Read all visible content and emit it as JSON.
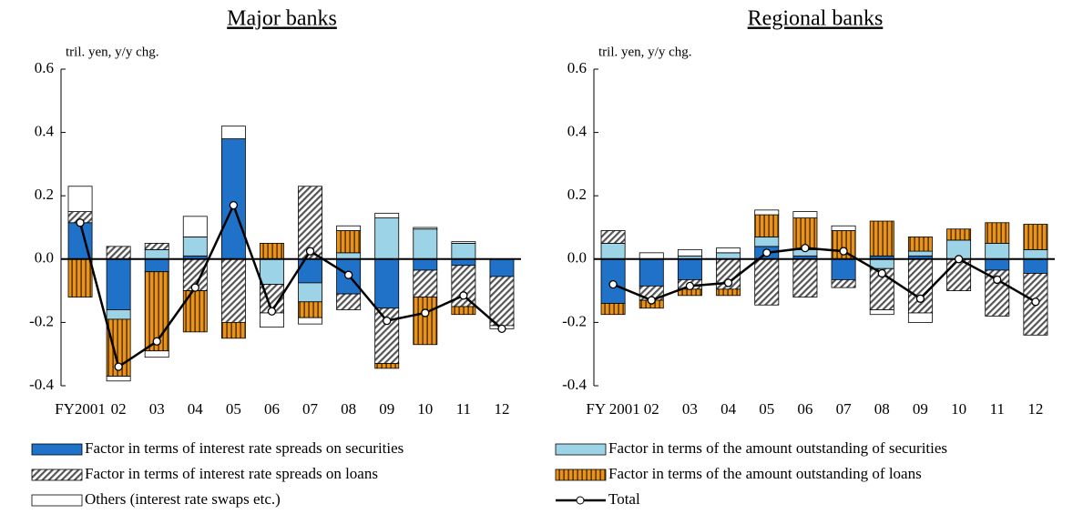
{
  "chart_data": [
    {
      "type": "bar",
      "title": "Major banks",
      "y_label": "tril. yen, y/y chg.",
      "categories": [
        "FY2001",
        "02",
        "03",
        "04",
        "05",
        "06",
        "07",
        "08",
        "09",
        "10",
        "11",
        "12"
      ],
      "ylim": [
        -0.4,
        0.6
      ],
      "yticks": [
        -0.4,
        -0.2,
        {
          "value": 0,
          "label": "0.0"
        },
        0.2,
        0.4,
        0.6
      ],
      "series": [
        {
          "name": "Factor in terms of interest rate spreads on securities",
          "color": "#1f72c8",
          "pattern": "solid",
          "values": [
            0.115,
            -0.16,
            -0.04,
            0.01,
            0.38,
            0,
            -0.075,
            -0.11,
            -0.155,
            -0.035,
            -0.02,
            -0.055
          ]
        },
        {
          "name": "Factor in terms of the amount outstanding of securities",
          "color": "#9dd3e6",
          "pattern": "solid",
          "values": [
            0,
            -0.03,
            0.03,
            0.06,
            0,
            -0.08,
            -0.06,
            0.02,
            0.13,
            0.095,
            0.05,
            0
          ]
        },
        {
          "name": "Factor in terms of interest rate spreads on loans",
          "color": "#555555",
          "pattern": "diagonal",
          "values": [
            0.035,
            0.04,
            0.02,
            -0.1,
            -0.2,
            -0.09,
            0.23,
            -0.05,
            -0.175,
            -0.085,
            -0.13,
            -0.155
          ]
        },
        {
          "name": "Factor in terms of the amount outstanding of loans",
          "color": "#e8941a",
          "pattern": "vertical",
          "values": [
            -0.12,
            -0.18,
            -0.25,
            -0.13,
            -0.05,
            0.05,
            -0.05,
            0.07,
            -0.015,
            -0.15,
            -0.025,
            0
          ]
        },
        {
          "name": "Others (interest rate swaps etc.)",
          "color": "#ffffff",
          "pattern": "solid",
          "values": [
            0.08,
            -0.015,
            -0.02,
            0.065,
            0.04,
            -0.045,
            -0.02,
            0.015,
            0.015,
            0.005,
            0.005,
            -0.01
          ]
        },
        {
          "name": "Total",
          "color": "#000000",
          "type": "line",
          "values": [
            0.115,
            -0.34,
            -0.26,
            -0.09,
            0.17,
            -0.165,
            0.025,
            -0.05,
            -0.195,
            -0.17,
            -0.115,
            -0.22
          ]
        }
      ]
    },
    {
      "type": "bar",
      "title": "Regional banks",
      "y_label": "tril. yen, y/y chg.",
      "categories": [
        "FY 2001",
        "02",
        "03",
        "04",
        "05",
        "06",
        "07",
        "08",
        "09",
        "10",
        "11",
        "12"
      ],
      "ylim": [
        -0.4,
        0.6
      ],
      "yticks": [
        -0.4,
        -0.2,
        {
          "value": 0,
          "label": "0.0"
        },
        0.2,
        0.4,
        0.6
      ],
      "series": [
        {
          "name": "Factor in terms of interest rate spreads on securities",
          "color": "#1f72c8",
          "pattern": "solid",
          "values": [
            -0.14,
            -0.085,
            -0.065,
            0,
            0.04,
            0.01,
            -0.065,
            0.01,
            0.01,
            0,
            -0.035,
            -0.045
          ]
        },
        {
          "name": "Factor in terms of the amount outstanding of securities",
          "color": "#9dd3e6",
          "pattern": "solid",
          "values": [
            0.05,
            0,
            0.01,
            0.02,
            0.03,
            0.02,
            0,
            -0.03,
            0.015,
            0.06,
            0.05,
            0.03
          ]
        },
        {
          "name": "Factor in terms of interest rate spreads on loans",
          "color": "#555555",
          "pattern": "diagonal",
          "values": [
            0.04,
            -0.045,
            -0.03,
            -0.095,
            -0.145,
            -0.12,
            -0.025,
            -0.13,
            -0.17,
            -0.1,
            -0.145,
            -0.195
          ]
        },
        {
          "name": "Factor in terms of the amount outstanding of loans",
          "color": "#e8941a",
          "pattern": "vertical",
          "values": [
            -0.035,
            -0.025,
            -0.02,
            -0.02,
            0.07,
            0.1,
            0.09,
            0.11,
            0.045,
            0.035,
            0.065,
            0.08
          ]
        },
        {
          "name": "Others (interest rate swaps etc.)",
          "color": "#ffffff",
          "pattern": "solid",
          "values": [
            0,
            0.02,
            0.02,
            0.015,
            0.015,
            0.02,
            0.015,
            -0.015,
            -0.03,
            0,
            0,
            0
          ]
        },
        {
          "name": "Total",
          "color": "#000000",
          "type": "line",
          "values": [
            -0.08,
            -0.13,
            -0.085,
            -0.075,
            0.02,
            0.035,
            0.025,
            -0.045,
            -0.125,
            0,
            -0.065,
            -0.135
          ]
        }
      ]
    }
  ]
}
